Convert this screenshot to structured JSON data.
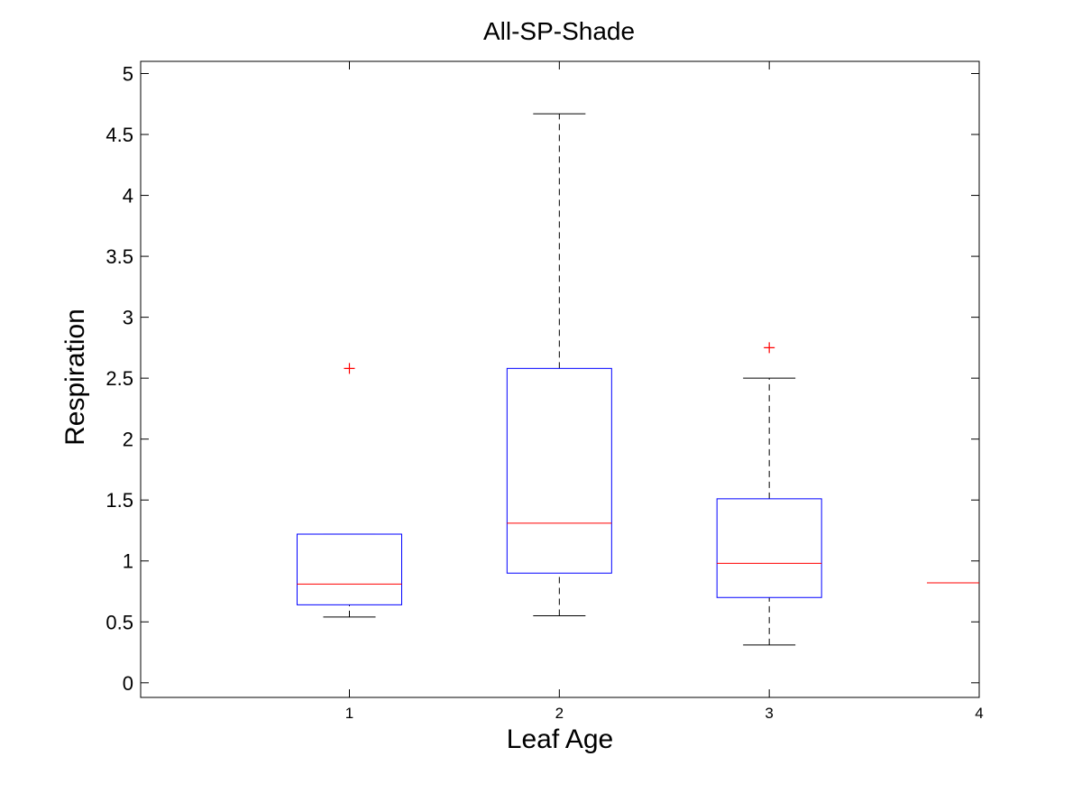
{
  "chart_data": {
    "type": "boxplot",
    "title": "All-SP-Shade",
    "xlabel": "Leaf Age",
    "ylabel": "Respiration",
    "categories": [
      "1",
      "2",
      "3",
      "4"
    ],
    "ylim": [
      -0.12,
      5.1
    ],
    "yticks": [
      0,
      0.5,
      1,
      1.5,
      2,
      2.5,
      3,
      3.5,
      4,
      4.5,
      5
    ],
    "ytick_labels": [
      "0",
      "0.5",
      "1",
      "1.5",
      "2",
      "2.5",
      "3",
      "3.5",
      "4",
      "4.5",
      "5"
    ],
    "grid": false,
    "boxes": [
      {
        "category": "1",
        "whisker_low": 0.54,
        "q1": 0.64,
        "median": 0.81,
        "q3": 1.22,
        "whisker_high": 1.22,
        "outliers": [
          2.58
        ]
      },
      {
        "category": "2",
        "whisker_low": 0.55,
        "q1": 0.9,
        "median": 1.31,
        "q3": 2.58,
        "whisker_high": 4.67,
        "outliers": []
      },
      {
        "category": "3",
        "whisker_low": 0.31,
        "q1": 0.7,
        "median": 0.98,
        "q3": 1.51,
        "whisker_high": 2.5,
        "outliers": [
          2.75
        ]
      },
      {
        "category": "4",
        "whisker_low": 0.82,
        "q1": 0.82,
        "median": 0.82,
        "q3": 0.82,
        "whisker_high": 0.82,
        "outliers": []
      }
    ],
    "colors": {
      "box": "#0000ff",
      "median": "#ff0000",
      "whisker": "#000000",
      "outlier": "#ff0000"
    }
  }
}
